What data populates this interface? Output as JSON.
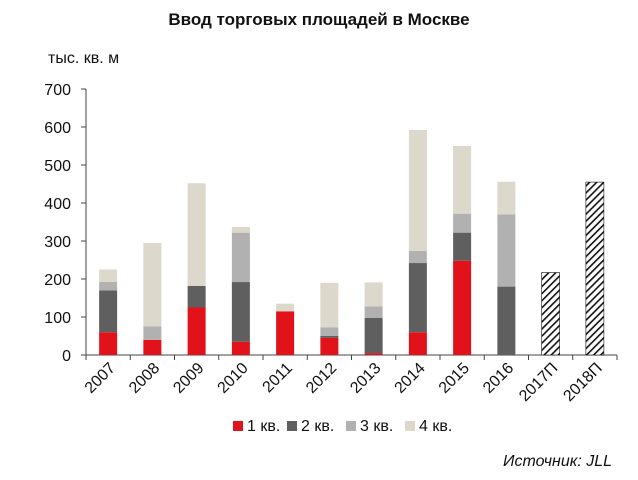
{
  "chart_data": {
    "type": "bar",
    "stacked": true,
    "title": "Ввод торговых площадей в Москве",
    "ylabel": "тыс. кв. м",
    "ylim": [
      0,
      700
    ],
    "yticks": [
      0,
      100,
      200,
      300,
      400,
      500,
      600,
      700
    ],
    "grid": false,
    "legend_position": "bottom",
    "categories": [
      "2007",
      "2008",
      "2009",
      "2010",
      "2011",
      "2012",
      "2013",
      "2014",
      "2015",
      "2016",
      "2017П",
      "2018П"
    ],
    "series": [
      {
        "name": "1 кв.",
        "color": "#e2121b",
        "values": [
          60,
          40,
          125,
          35,
          115,
          45,
          5,
          60,
          248,
          0,
          null,
          null
        ]
      },
      {
        "name": "2 кв.",
        "color": "#5f5f5f",
        "values": [
          110,
          0,
          57,
          157,
          0,
          5,
          93,
          182,
          74,
          180,
          null,
          null
        ]
      },
      {
        "name": "3 кв.",
        "color": "#b1b1b1",
        "values": [
          22,
          35,
          0,
          130,
          0,
          23,
          30,
          32,
          50,
          190,
          null,
          null
        ]
      },
      {
        "name": "4 кв.",
        "color": "#dcd8cc",
        "values": [
          33,
          220,
          270,
          15,
          20,
          117,
          63,
          318,
          178,
          86,
          null,
          null
        ]
      }
    ],
    "forecast": {
      "pattern": "diagonal-hatch",
      "values": [
        null,
        null,
        null,
        null,
        null,
        null,
        null,
        null,
        null,
        null,
        217,
        455
      ]
    },
    "source": "Источник: JLL"
  }
}
